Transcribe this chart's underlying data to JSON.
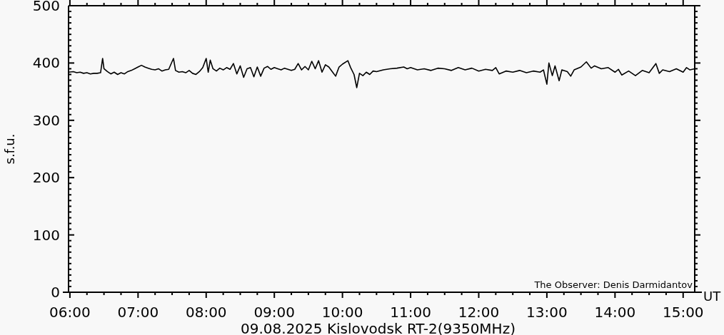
{
  "chart_data": {
    "type": "line",
    "xlabel": "09.08.2025 Kislovodsk RT-2(9350MHz)",
    "ylabel": "s.f.u.",
    "annotations": [
      "The Observer: Denis Darmidantov",
      "UT"
    ],
    "xlim": [
      5.98,
      15.17
    ],
    "ylim": [
      0,
      500
    ],
    "xticks": [
      {
        "value": 6,
        "label": "06:00"
      },
      {
        "value": 6.25,
        "label": null
      },
      {
        "value": 6.5,
        "label": null
      },
      {
        "value": 6.75,
        "label": null
      },
      {
        "value": 7,
        "label": "07:00"
      },
      {
        "value": 7.25,
        "label": null
      },
      {
        "value": 7.5,
        "label": null
      },
      {
        "value": 7.75,
        "label": null
      },
      {
        "value": 8,
        "label": "08:00"
      },
      {
        "value": 8.25,
        "label": null
      },
      {
        "value": 8.5,
        "label": null
      },
      {
        "value": 8.75,
        "label": null
      },
      {
        "value": 9,
        "label": "09:00"
      },
      {
        "value": 9.25,
        "label": null
      },
      {
        "value": 9.5,
        "label": null
      },
      {
        "value": 9.75,
        "label": null
      },
      {
        "value": 10,
        "label": "10:00"
      },
      {
        "value": 10.25,
        "label": null
      },
      {
        "value": 10.5,
        "label": null
      },
      {
        "value": 10.75,
        "label": null
      },
      {
        "value": 11,
        "label": "11:00"
      },
      {
        "value": 11.25,
        "label": null
      },
      {
        "value": 11.5,
        "label": null
      },
      {
        "value": 11.75,
        "label": null
      },
      {
        "value": 12,
        "label": "12:00"
      },
      {
        "value": 12.25,
        "label": null
      },
      {
        "value": 12.5,
        "label": null
      },
      {
        "value": 12.75,
        "label": null
      },
      {
        "value": 13,
        "label": "13:00"
      },
      {
        "value": 13.25,
        "label": null
      },
      {
        "value": 13.5,
        "label": null
      },
      {
        "value": 13.75,
        "label": null
      },
      {
        "value": 14,
        "label": "14:00"
      },
      {
        "value": 14.25,
        "label": null
      },
      {
        "value": 14.5,
        "label": null
      },
      {
        "value": 14.75,
        "label": null
      },
      {
        "value": 15,
        "label": "15:00"
      }
    ],
    "yticks": [
      0,
      {
        "value": 10,
        "label": null
      },
      {
        "value": 20,
        "label": null
      },
      {
        "value": 30,
        "label": null
      },
      {
        "value": 40,
        "label": null
      },
      {
        "value": 50,
        "label": null
      },
      {
        "value": 60,
        "label": null
      },
      {
        "value": 70,
        "label": null
      },
      {
        "value": 80,
        "label": null
      },
      {
        "value": 90,
        "label": null
      },
      100,
      {
        "value": 110,
        "label": null
      },
      {
        "value": 120,
        "label": null
      },
      {
        "value": 130,
        "label": null
      },
      {
        "value": 140,
        "label": null
      },
      {
        "value": 150,
        "label": null
      },
      {
        "value": 160,
        "label": null
      },
      {
        "value": 170,
        "label": null
      },
      {
        "value": 180,
        "label": null
      },
      {
        "value": 190,
        "label": null
      },
      200,
      {
        "value": 210,
        "label": null
      },
      {
        "value": 220,
        "label": null
      },
      {
        "value": 230,
        "label": null
      },
      {
        "value": 240,
        "label": null
      },
      {
        "value": 250,
        "label": null
      },
      {
        "value": 260,
        "label": null
      },
      {
        "value": 270,
        "label": null
      },
      {
        "value": 280,
        "label": null
      },
      {
        "value": 290,
        "label": null
      },
      300,
      {
        "value": 310,
        "label": null
      },
      {
        "value": 320,
        "label": null
      },
      {
        "value": 330,
        "label": null
      },
      {
        "value": 340,
        "label": null
      },
      {
        "value": 350,
        "label": null
      },
      {
        "value": 360,
        "label": null
      },
      {
        "value": 370,
        "label": null
      },
      {
        "value": 380,
        "label": null
      },
      {
        "value": 390,
        "label": null
      },
      400,
      {
        "value": 410,
        "label": null
      },
      {
        "value": 420,
        "label": null
      },
      {
        "value": 430,
        "label": null
      },
      {
        "value": 440,
        "label": null
      },
      {
        "value": 450,
        "label": null
      },
      {
        "value": 460,
        "label": null
      },
      {
        "value": 470,
        "label": null
      },
      {
        "value": 480,
        "label": null
      },
      {
        "value": 490,
        "label": null
      },
      500
    ],
    "grid": false,
    "series": [
      {
        "color": "#000000",
        "x": [
          5.98,
          6.05,
          6.1,
          6.15,
          6.2,
          6.25,
          6.3,
          6.35,
          6.4,
          6.45,
          6.48,
          6.5,
          6.55,
          6.6,
          6.65,
          6.7,
          6.75,
          6.8,
          6.85,
          6.9,
          6.95,
          7.0,
          7.05,
          7.1,
          7.15,
          7.2,
          7.25,
          7.3,
          7.35,
          7.4,
          7.45,
          7.52,
          7.55,
          7.6,
          7.65,
          7.7,
          7.75,
          7.8,
          7.85,
          7.9,
          7.95,
          8.0,
          8.03,
          8.06,
          8.1,
          8.15,
          8.2,
          8.25,
          8.3,
          8.35,
          8.4,
          8.45,
          8.5,
          8.55,
          8.6,
          8.65,
          8.7,
          8.75,
          8.8,
          8.85,
          8.9,
          8.95,
          9.0,
          9.05,
          9.1,
          9.15,
          9.2,
          9.25,
          9.3,
          9.35,
          9.4,
          9.45,
          9.5,
          9.55,
          9.6,
          9.65,
          9.7,
          9.75,
          9.8,
          9.85,
          9.9,
          9.95,
          10.0,
          10.08,
          10.12,
          10.17,
          10.21,
          10.25,
          10.3,
          10.35,
          10.4,
          10.45,
          10.5,
          10.6,
          10.7,
          10.8,
          10.9,
          10.95,
          11.0,
          11.1,
          11.2,
          11.3,
          11.4,
          11.5,
          11.6,
          11.7,
          11.8,
          11.9,
          12.0,
          12.1,
          12.2,
          12.25,
          12.3,
          12.4,
          12.5,
          12.6,
          12.7,
          12.8,
          12.9,
          12.95,
          13.0,
          13.03,
          13.08,
          13.12,
          13.18,
          13.22,
          13.3,
          13.35,
          13.4,
          13.5,
          13.58,
          13.65,
          13.7,
          13.8,
          13.9,
          14.0,
          14.05,
          14.1,
          14.2,
          14.3,
          14.4,
          14.5,
          14.6,
          14.65,
          14.7,
          14.8,
          14.9,
          15.0,
          15.05,
          15.1,
          15.17
        ],
        "values": [
          384,
          385,
          383,
          384,
          382,
          383,
          381,
          382,
          382,
          383,
          408,
          390,
          385,
          381,
          384,
          380,
          383,
          381,
          385,
          387,
          390,
          393,
          396,
          393,
          391,
          389,
          388,
          390,
          386,
          388,
          389,
          408,
          387,
          384,
          385,
          383,
          387,
          382,
          380,
          385,
          392,
          408,
          384,
          405,
          390,
          386,
          391,
          388,
          392,
          389,
          399,
          381,
          395,
          375,
          390,
          392,
          376,
          393,
          377,
          391,
          394,
          389,
          392,
          390,
          388,
          391,
          389,
          387,
          389,
          399,
          388,
          394,
          388,
          403,
          390,
          404,
          384,
          397,
          393,
          385,
          377,
          393,
          398,
          404,
          392,
          380,
          357,
          382,
          378,
          384,
          380,
          386,
          385,
          388,
          390,
          391,
          393,
          390,
          392,
          388,
          390,
          387,
          391,
          390,
          387,
          392,
          388,
          391,
          386,
          389,
          387,
          392,
          381,
          386,
          384,
          387,
          383,
          386,
          384,
          388,
          363,
          400,
          378,
          395,
          369,
          388,
          385,
          377,
          388,
          393,
          402,
          391,
          395,
          390,
          392,
          384,
          389,
          379,
          386,
          378,
          387,
          383,
          399,
          382,
          388,
          385,
          390,
          384,
          392,
          388,
          390
        ]
      }
    ]
  }
}
